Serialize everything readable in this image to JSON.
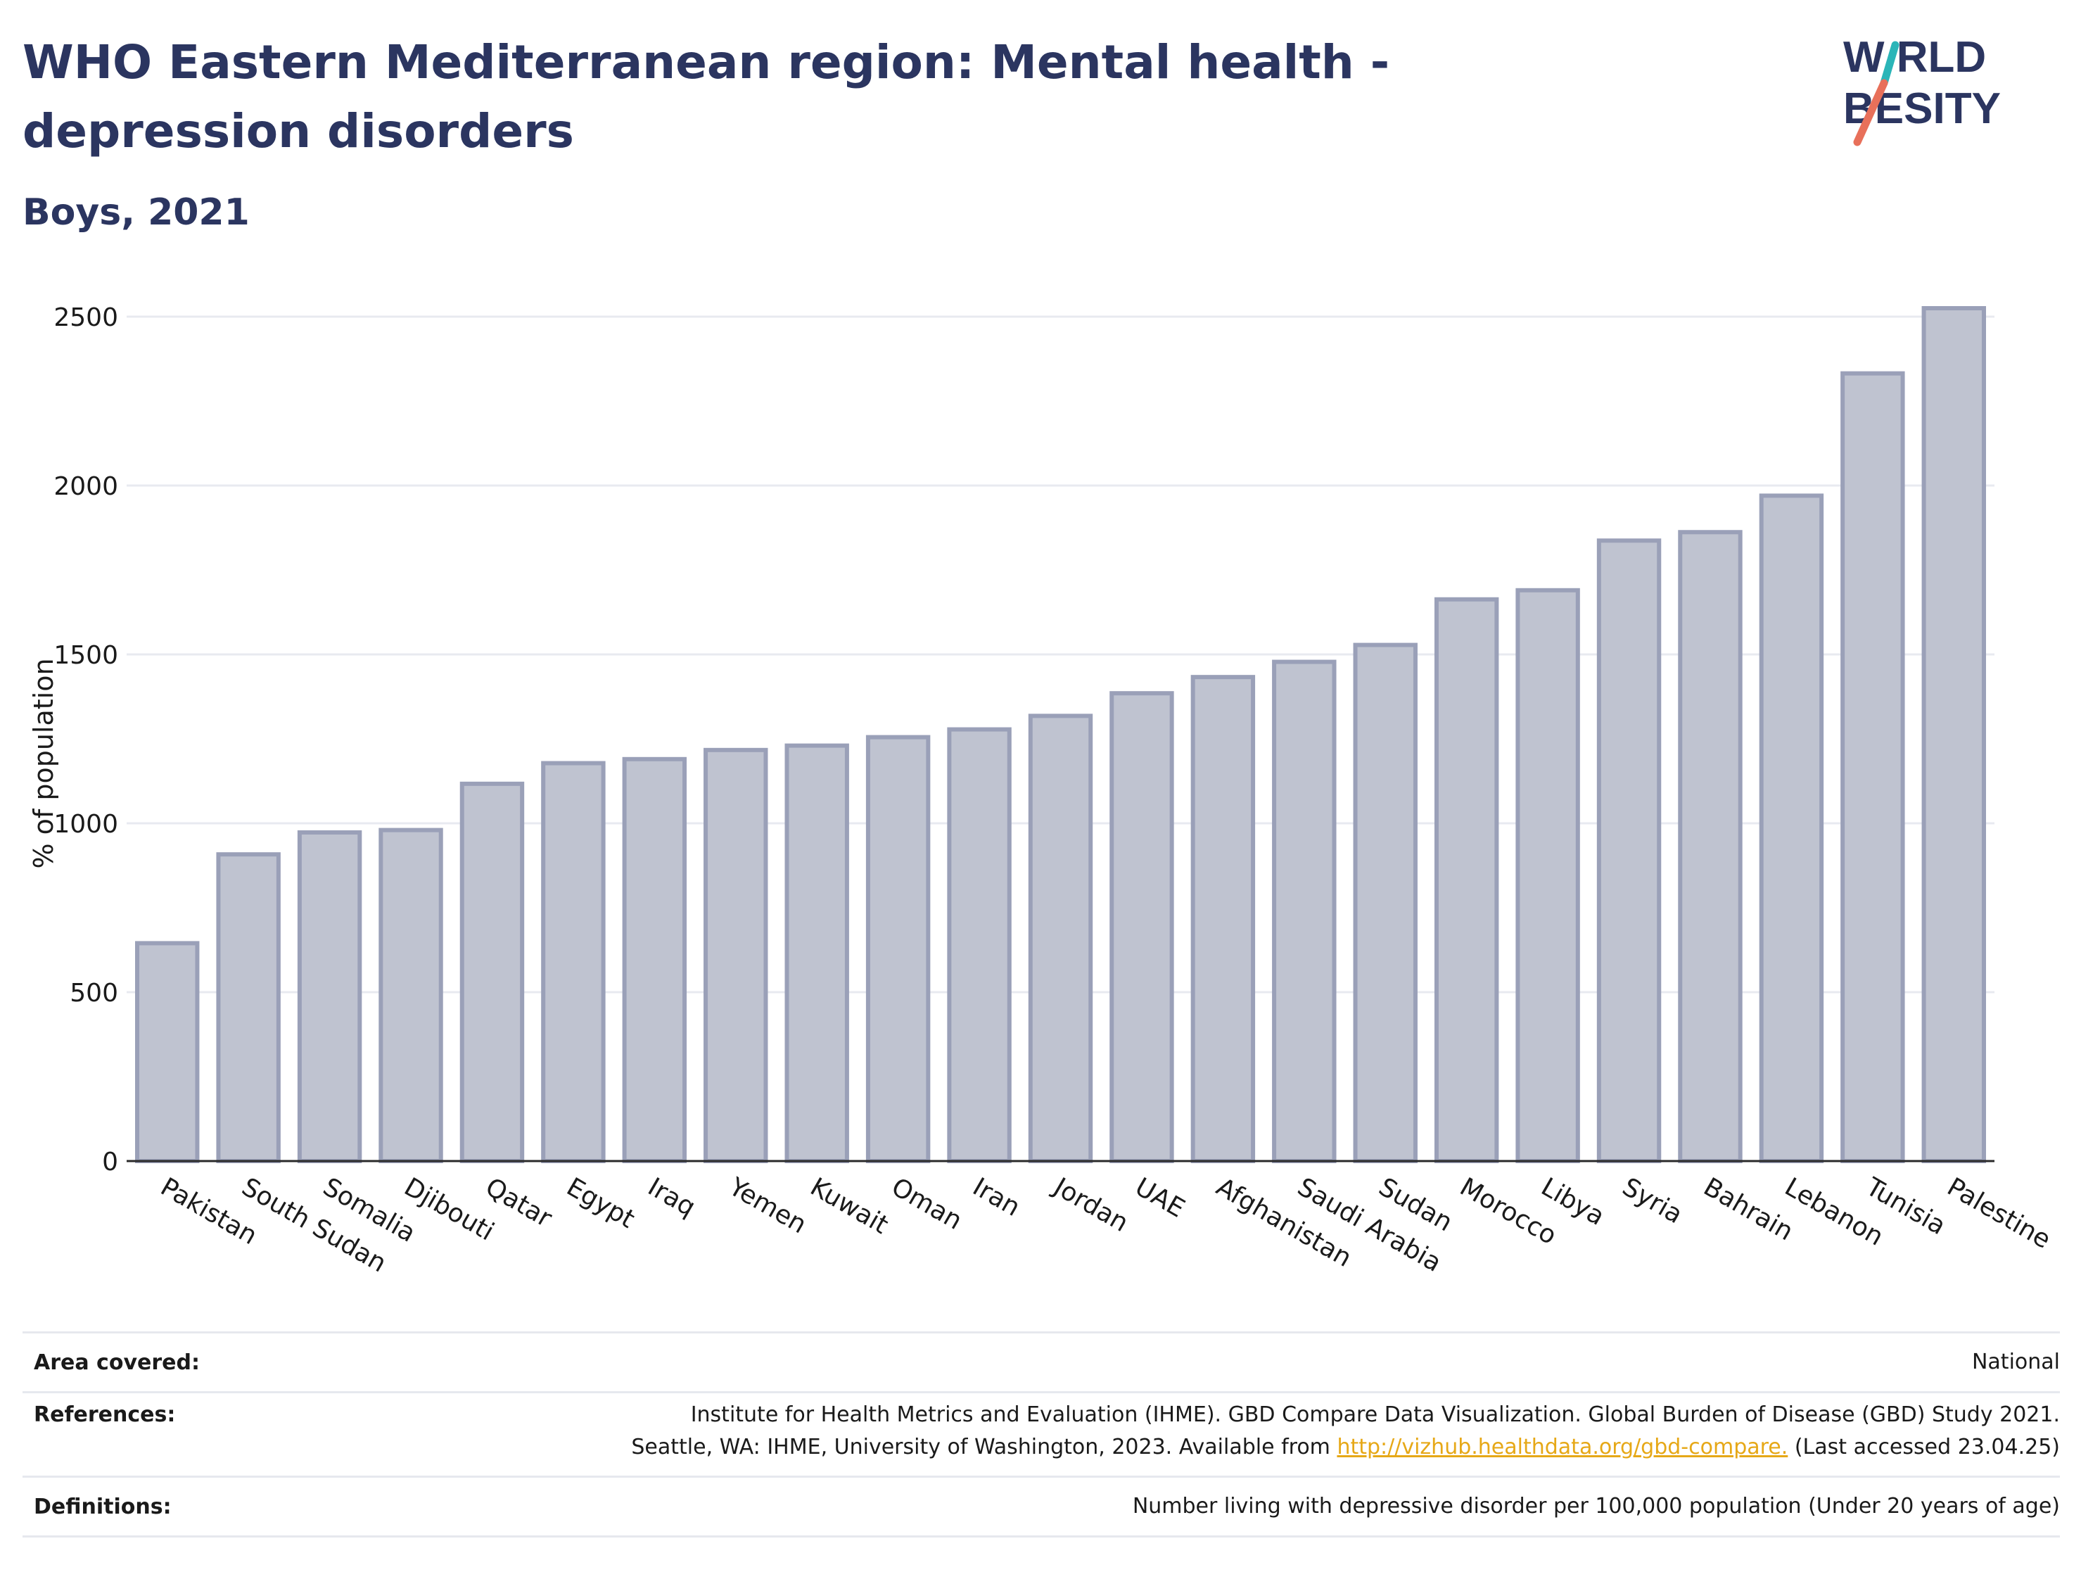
{
  "header": {
    "title": "WHO Eastern Mediterranean region: Mental health - depression disorders",
    "subtitle": "Boys, 2021"
  },
  "logo": {
    "line1": "W RLD",
    "line2": "BESITY",
    "name": "World Obesity"
  },
  "colors": {
    "title": "#2b3560",
    "bar_fill": "#bfc3d0",
    "bar_stroke": "#9aa0b8",
    "grid": "#e8eaf0",
    "axis": "#2a2a2a",
    "logo_teal": "#2bb5b8",
    "logo_coral": "#e8705a",
    "link": "#e6a817"
  },
  "chart_data": {
    "type": "bar",
    "ylabel": "% of population",
    "ylim": [
      0,
      2600
    ],
    "yticks": [
      0,
      500,
      1000,
      1500,
      2000,
      2500
    ],
    "grid": true,
    "categories": [
      "Pakistan",
      "South Sudan",
      "Somalia",
      "Djibouti",
      "Qatar",
      "Egypt",
      "Iraq",
      "Yemen",
      "Kuwait",
      "Oman",
      "Iran",
      "Jordan",
      "UAE",
      "Afghanistan",
      "Saudi Arabia",
      "Sudan",
      "Morocco",
      "Libya",
      "Syria",
      "Bahrain",
      "Lebanon",
      "Tunisia",
      "Palestine"
    ],
    "values": [
      645,
      908,
      973,
      980,
      1117,
      1178,
      1190,
      1217,
      1230,
      1255,
      1278,
      1318,
      1385,
      1433,
      1478,
      1528,
      1663,
      1690,
      1837,
      1862,
      1970,
      2332,
      2525
    ]
  },
  "footer": {
    "area_label": "Area covered:",
    "area_value": "National",
    "references_label": "References:",
    "references_line1": "Institute for Health Metrics and Evaluation (IHME). GBD Compare Data Visualization. Global Burden of Disease (GBD) Study 2021.",
    "references_line2_pre": "Seattle, WA: IHME, University of Washington, 2023. Available from ",
    "references_link": "http://vizhub.healthdata.org/gbd-compare.",
    "references_line2_post": " (Last accessed 23.04.25)",
    "definitions_label": "Definitions:",
    "definitions_value": "Number living with depressive disorder per 100,000 population (Under 20 years of age)"
  }
}
